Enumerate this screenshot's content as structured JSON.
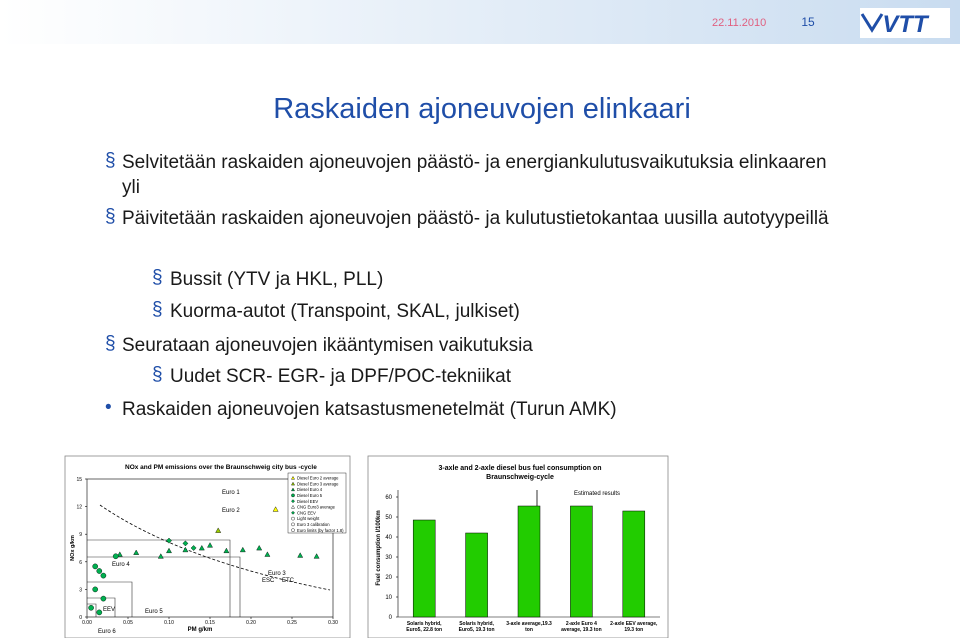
{
  "header": {
    "date": "22.11.2010",
    "page": "15",
    "logo": "VTT"
  },
  "title": "Raskaiden ajoneuvojen elinkaari",
  "bullets": [
    {
      "level": 1,
      "marker": "§",
      "text": "Selvitetään raskaiden ajoneuvojen päästö- ja energiankulutusvaikutuksia elinkaaren yli"
    },
    {
      "level": 1,
      "marker": "§",
      "text": "Päivitetään raskaiden ajoneuvojen päästö- ja kulutustietokantaa uusilla autotyypeillä"
    },
    {
      "level": 2,
      "marker": "§",
      "text": "Bussit (YTV ja HKL, PLL)"
    },
    {
      "level": 2,
      "marker": "§",
      "text": "Kuorma-autot (Transpoint, SKAL, julkiset)"
    },
    {
      "level": 1,
      "marker": "§",
      "text": "Seurataan ajoneuvojen ikääntymisen vaikutuksia"
    },
    {
      "level": 2,
      "marker": "§",
      "text": "Uudet SCR- EGR- ja DPF/POC-tekniikat"
    },
    {
      "level": 1,
      "marker": "•",
      "text": "Raskaiden ajoneuvojen katsastusmenetelmät (Turun AMK)"
    }
  ],
  "chart_data": [
    {
      "type": "scatter",
      "title": "NOx and PM emissions over the Braunschweig city bus -cycle",
      "x_label": "PM g/km",
      "y_label": "NOx g/km",
      "xlim": [
        0,
        0.3
      ],
      "ylim": [
        0,
        15
      ],
      "xticks": [
        {
          "value": 0,
          "label": "0.00"
        },
        {
          "value": 0.05,
          "label": "0.05"
        },
        {
          "value": 0.1,
          "label": "0.10"
        },
        {
          "value": 0.15,
          "label": "0.15"
        },
        {
          "value": 0.2,
          "label": "0.20"
        },
        {
          "value": 0.25,
          "label": "0.25"
        },
        {
          "value": 0.3,
          "label": "0.30"
        }
      ],
      "yticks": [
        0,
        3,
        6,
        9,
        12,
        15
      ],
      "annotations": [
        "Euro 1",
        "Euro 2",
        "Euro 3",
        "ESC",
        "ETC",
        "Euro 4",
        "Euro 5",
        "EEV",
        "Euro 6"
      ],
      "series": [
        {
          "name": "Diesel Euro 2 average",
          "color": "#ffff00",
          "marker": "triangle",
          "x": [
            0.23
          ],
          "values": [
            11.7
          ]
        },
        {
          "name": "Diesel Euro 3 average",
          "color": "#99cc00",
          "marker": "triangle",
          "x": [
            0.16
          ],
          "values": [
            9.4
          ]
        },
        {
          "name": "Diesel Euro 4",
          "color": "#00b050",
          "marker": "triangle",
          "x": [
            0.04,
            0.06,
            0.09,
            0.1,
            0.12,
            0.14,
            0.15,
            0.17,
            0.19,
            0.21,
            0.22,
            0.26,
            0.28
          ],
          "values": [
            6.8,
            7.0,
            6.6,
            7.2,
            7.3,
            7.5,
            7.8,
            7.2,
            7.3,
            7.5,
            6.8,
            6.7,
            6.6
          ]
        },
        {
          "name": "Diesel Euro 5",
          "color": "#00b050",
          "marker": "circle",
          "x": [
            0.01,
            0.015,
            0.02,
            0.01,
            0.02,
            0.005,
            0.015,
            0.035
          ],
          "values": [
            5.5,
            5.0,
            4.5,
            3.0,
            2.0,
            1.0,
            0.5,
            6.6
          ]
        },
        {
          "name": "Diesel EEV",
          "color": "#00b050",
          "marker": "diamond",
          "x": [
            0.1,
            0.12,
            0.13
          ],
          "values": [
            8.3,
            8.0,
            7.5
          ]
        },
        {
          "name": "CNG Euro3 average",
          "color": "#ffffff",
          "marker": "triangle",
          "x": [],
          "values": []
        },
        {
          "name": "CNG EEV",
          "color": "#00b050",
          "marker": "diamond",
          "x": [],
          "values": []
        },
        {
          "name": "Light weight",
          "color": "#ffffff",
          "marker": "circle",
          "x": [],
          "values": []
        },
        {
          "name": "Euro 3 calibration",
          "color": "#ffffff",
          "marker": "circle",
          "x": [],
          "values": []
        },
        {
          "name": "Euro limits (by factor 1.8)",
          "color": "#ffffff",
          "marker": "circle",
          "x": [],
          "values": []
        }
      ]
    },
    {
      "type": "bar",
      "title": "3-axle and 2-axle diesel bus fuel consumption on Braunschweig-cycle",
      "y_label": "Fuel consumption l/100km",
      "annotation": "Estimated results",
      "categories": [
        "Solaris hybrid, Euro5, 22.8 ton",
        "Solaris hybrid, Euro5, 19.3 ton",
        "3-axle average,19.3 ton",
        "2-axle Euro 4 average, 19.3 ton",
        "2-axle EEV average, 19.3 ton"
      ],
      "values": [
        48.5,
        42,
        55.5,
        55.5,
        53
      ],
      "color": "#22cc00",
      "ylim": [
        0,
        70
      ],
      "yticks": [
        0,
        10,
        20,
        30,
        40,
        50,
        60
      ]
    }
  ]
}
